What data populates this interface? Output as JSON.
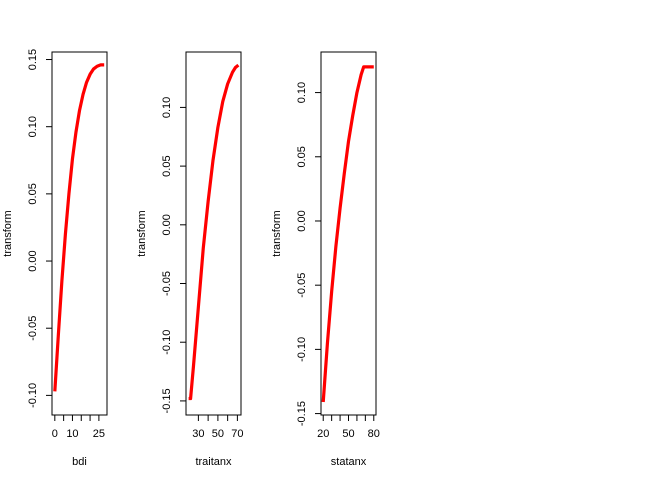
{
  "chart_data": [
    {
      "type": "line",
      "xlabel": "bdi",
      "ylabel": "transform",
      "xlim": [
        -1.6,
        29.6
      ],
      "ylim": [
        -0.1146,
        0.1556
      ],
      "x_ticks": [
        0,
        5,
        10,
        15,
        20,
        25
      ],
      "x_tick_labels": [
        "0",
        "",
        "10",
        "",
        "",
        "25"
      ],
      "y_ticks": [
        -0.1,
        -0.05,
        0.0,
        0.05,
        0.1,
        0.15
      ],
      "y_tick_labels": [
        "-0.10",
        "-0.05",
        "0.00",
        "0.05",
        "0.10",
        "0.15"
      ],
      "grid": false,
      "series": [
        {
          "color": "#ff0000",
          "x": [
            0,
            2,
            4,
            6,
            8,
            10,
            12,
            14,
            16,
            18,
            20,
            22,
            24,
            26,
            28
          ],
          "y": [
            -0.097,
            -0.055,
            -0.015,
            0.02,
            0.05,
            0.076,
            0.096,
            0.112,
            0.124,
            0.133,
            0.139,
            0.143,
            0.145,
            0.146,
            0.146
          ]
        }
      ]
    },
    {
      "type": "line",
      "xlabel": "traitanx",
      "ylabel": "transform",
      "xlim": [
        17.3,
        73.7
      ],
      "ylim": [
        -0.162,
        0.1472
      ],
      "x_ticks": [
        30,
        40,
        50,
        60,
        70
      ],
      "x_tick_labels": [
        "30",
        "",
        "50",
        "",
        "70"
      ],
      "y_ticks": [
        -0.15,
        -0.1,
        -0.05,
        0.0,
        0.05,
        0.1
      ],
      "y_tick_labels": [
        "-0.15",
        "-0.10",
        "-0.05",
        "0.00",
        "0.05",
        "0.10"
      ],
      "grid": false,
      "series": [
        {
          "color": "#ff0000",
          "x": [
            20,
            22,
            25,
            30,
            35,
            40,
            45,
            50,
            55,
            60,
            65,
            68,
            71
          ],
          "y": [
            -0.148,
            -0.148,
            -0.12,
            -0.07,
            -0.02,
            0.02,
            0.055,
            0.083,
            0.105,
            0.12,
            0.13,
            0.134,
            0.136
          ]
        }
      ]
    },
    {
      "type": "line",
      "xlabel": "statanx",
      "ylabel": "transform",
      "xlim": [
        17.36,
        82.64
      ],
      "ylim": [
        -0.1511,
        0.1316
      ],
      "x_ticks": [
        20,
        30,
        40,
        50,
        60,
        70,
        80
      ],
      "x_tick_labels": [
        "20",
        "",
        "",
        "50",
        "",
        "",
        "80"
      ],
      "y_ticks": [
        -0.15,
        -0.1,
        -0.05,
        0.0,
        0.05,
        0.1
      ],
      "y_tick_labels": [
        "-0.15",
        "-0.10",
        "-0.05",
        "0.00",
        "0.05",
        "0.10"
      ],
      "grid": false,
      "series": [
        {
          "color": "#ff0000",
          "x": [
            20,
            25,
            30,
            35,
            40,
            45,
            50,
            55,
            60,
            65,
            68,
            70,
            75,
            80
          ],
          "y": [
            -0.141,
            -0.095,
            -0.055,
            -0.02,
            0.01,
            0.037,
            0.062,
            0.082,
            0.1,
            0.114,
            0.12,
            0.12,
            0.12,
            0.12
          ]
        }
      ]
    }
  ]
}
